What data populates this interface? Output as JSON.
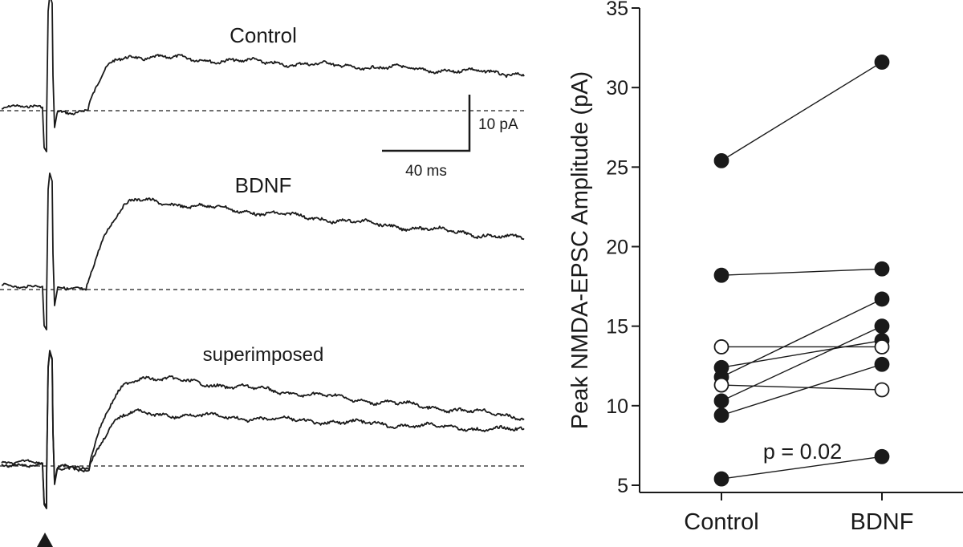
{
  "chart_data": [
    {
      "type": "line",
      "panel": "traces",
      "trace_labels": {
        "control": "Control",
        "bdnf": "BDNF",
        "superimposed": "superimposed"
      },
      "scale_bar": {
        "amplitude_label": "10 pA",
        "time_label": "40 ms"
      },
      "stimulus_marker": "triangle"
    },
    {
      "type": "scatter",
      "panel": "paired",
      "categories": [
        "Control",
        "BDNF"
      ],
      "ylabel": "Peak NMDA-EPSC Amplitude (pA)",
      "ylim": [
        5,
        35
      ],
      "yticks": [
        "5",
        "10",
        "15",
        "20",
        "25",
        "30",
        "35"
      ],
      "annotation": "p = 0.02",
      "grid": false,
      "pairs": [
        {
          "control": 25.4,
          "bdnf": 31.6,
          "filled": true
        },
        {
          "control": 18.2,
          "bdnf": 18.6,
          "filled": true
        },
        {
          "control": 12.4,
          "bdnf": 14.1,
          "filled": true
        },
        {
          "control": 11.8,
          "bdnf": 16.7,
          "filled": true
        },
        {
          "control": 10.3,
          "bdnf": 15.0,
          "filled": true
        },
        {
          "control": 9.4,
          "bdnf": 12.6,
          "filled": true
        },
        {
          "control": 5.4,
          "bdnf": 6.8,
          "filled": true
        },
        {
          "control": 13.7,
          "bdnf": 13.7,
          "filled": false
        },
        {
          "control": 11.3,
          "bdnf": 11.0,
          "filled": false
        }
      ]
    }
  ]
}
